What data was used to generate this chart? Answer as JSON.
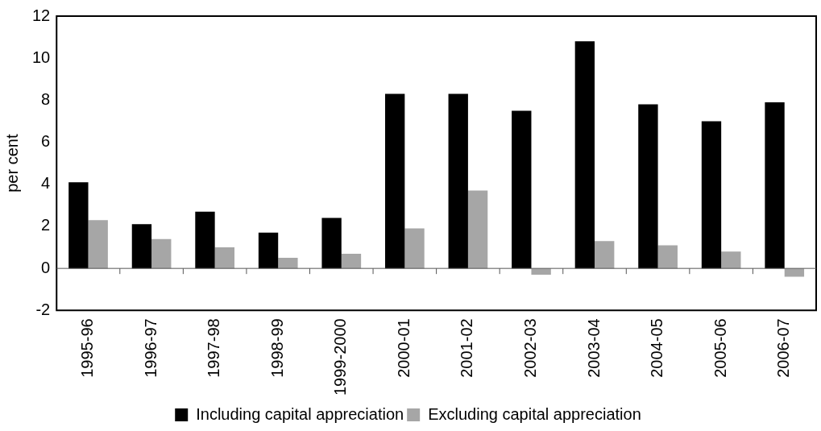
{
  "chart_data": {
    "type": "bar",
    "ylabel": "per cent",
    "categories": [
      "1995-96",
      "1996-97",
      "1997-98",
      "1998-99",
      "1999-2000",
      "2000-01",
      "2001-02",
      "2002-03",
      "2003-04",
      "2004-05",
      "2005-06",
      "2006-07"
    ],
    "series": [
      {
        "name": "Including capital appreciation",
        "color": "#000000",
        "values": [
          4.1,
          2.1,
          2.7,
          1.7,
          2.4,
          8.3,
          8.3,
          7.5,
          10.8,
          7.8,
          7.0,
          7.9
        ]
      },
      {
        "name": "Excluding capital appreciation",
        "color": "#a6a6a6",
        "values": [
          2.3,
          1.4,
          1.0,
          0.5,
          0.7,
          1.9,
          3.7,
          -0.3,
          1.3,
          1.1,
          0.8,
          -0.4
        ]
      }
    ],
    "ref_lines": [
      {
        "axis": "y",
        "value": 0,
        "color": "#555555"
      }
    ],
    "ylim": [
      -2,
      12
    ],
    "yticks": [
      -2,
      0,
      2,
      4,
      6,
      8,
      10,
      12
    ],
    "grid": false,
    "legend": "bottom"
  }
}
